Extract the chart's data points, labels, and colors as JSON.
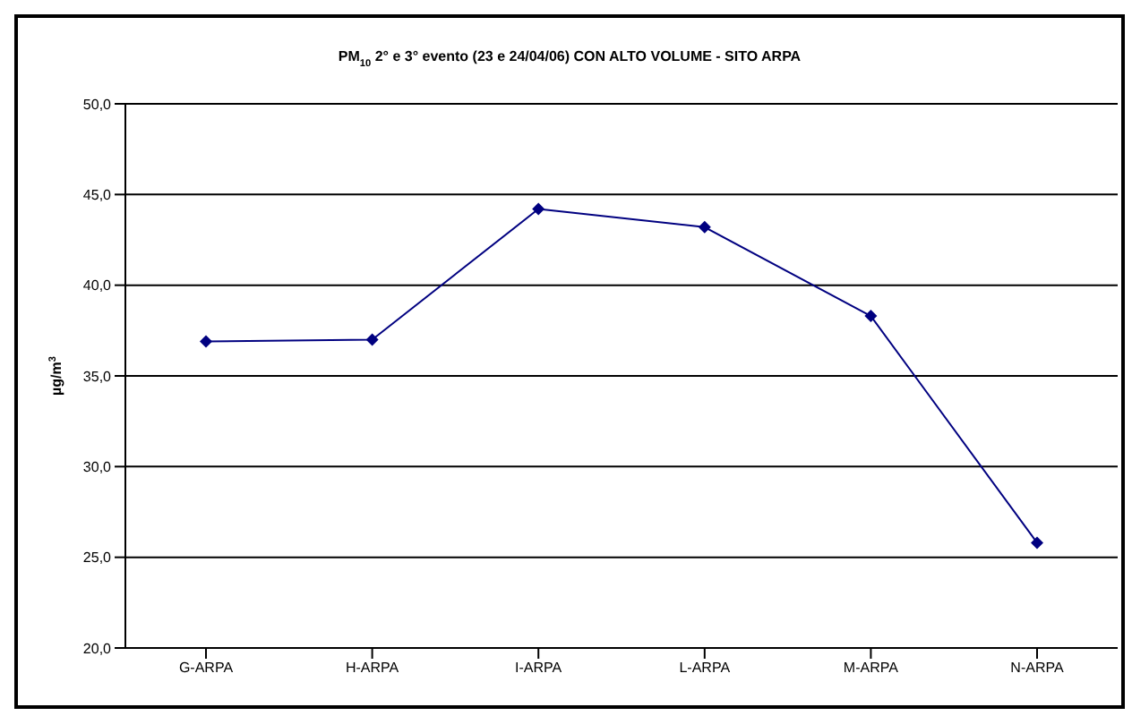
{
  "chart_data": {
    "type": "line",
    "title": "PM$_{10}$ 2° e 3° evento (23 e 24/04/06) CON ALTO VOLUME - SITO ARPA",
    "ylabel": "µg/m$^{3}$",
    "categories": [
      "G-ARPA",
      "H-ARPA",
      "I-ARPA",
      "L-ARPA",
      "M-ARPA",
      "N-ARPA"
    ],
    "series": [
      {
        "color": "#000080",
        "values": [
          36.9,
          37.0,
          44.2,
          43.2,
          38.3,
          25.8
        ]
      }
    ],
    "ylim": [
      20,
      50
    ],
    "yticks": [
      {
        "value": 20,
        "label": "20,0"
      },
      {
        "value": 25,
        "label": "25,0"
      },
      {
        "value": 30,
        "label": "30,0"
      },
      {
        "value": 35,
        "label": "35,0"
      },
      {
        "value": 40,
        "label": "40,0"
      },
      {
        "value": 45,
        "label": "45,0"
      },
      {
        "value": 50,
        "label": "50,0"
      }
    ],
    "grid": "y",
    "legend": false,
    "marker": "diamond",
    "line_style": "solid"
  }
}
